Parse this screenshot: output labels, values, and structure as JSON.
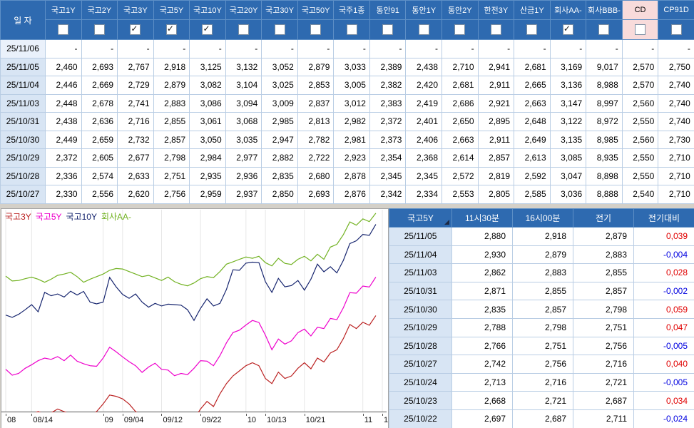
{
  "colors": {
    "window_bg": "#d4d0c8",
    "header_bg": "#2e6ab0",
    "header_text": "#ffffff",
    "date_cell_bg": "#d8e5f4",
    "cd_highlight_bg": "#f8dbdb",
    "change_up": "#e00000",
    "change_down": "#0000e0"
  },
  "top_table": {
    "date_header": "일  자",
    "columns": [
      {
        "label": "국고1Y",
        "checked": false,
        "highlight": false
      },
      {
        "label": "국고2Y",
        "checked": false,
        "highlight": false
      },
      {
        "label": "국고3Y",
        "checked": true,
        "highlight": false
      },
      {
        "label": "국고5Y",
        "checked": true,
        "highlight": false
      },
      {
        "label": "국고10Y",
        "checked": true,
        "highlight": false
      },
      {
        "label": "국고20Y",
        "checked": false,
        "highlight": false
      },
      {
        "label": "국고30Y",
        "checked": false,
        "highlight": false
      },
      {
        "label": "국고50Y",
        "checked": false,
        "highlight": false
      },
      {
        "label": "국주1종",
        "checked": false,
        "highlight": false
      },
      {
        "label": "통안91",
        "checked": false,
        "highlight": false
      },
      {
        "label": "통안1Y",
        "checked": false,
        "highlight": false
      },
      {
        "label": "통안2Y",
        "checked": false,
        "highlight": false
      },
      {
        "label": "한전3Y",
        "checked": false,
        "highlight": false
      },
      {
        "label": "산금1Y",
        "checked": false,
        "highlight": false
      },
      {
        "label": "회사AA-",
        "checked": true,
        "highlight": false
      },
      {
        "label": "회사BBB-",
        "checked": false,
        "highlight": false
      },
      {
        "label": "CD",
        "checked": false,
        "highlight": true
      },
      {
        "label": "CP91D",
        "checked": false,
        "highlight": false
      }
    ],
    "rows": [
      {
        "date": "25/11/06",
        "values": [
          "-",
          "-",
          "-",
          "-",
          "-",
          "-",
          "-",
          "-",
          "-",
          "-",
          "-",
          "-",
          "-",
          "-",
          "-",
          "-",
          "-",
          "-"
        ]
      },
      {
        "date": "25/11/05",
        "values": [
          "2,460",
          "2,693",
          "2,767",
          "2,918",
          "3,125",
          "3,132",
          "3,052",
          "2,879",
          "3,033",
          "2,389",
          "2,438",
          "2,710",
          "2,941",
          "2,681",
          "3,169",
          "9,017",
          "2,570",
          "2,750"
        ]
      },
      {
        "date": "25/11/04",
        "values": [
          "2,446",
          "2,669",
          "2,729",
          "2,879",
          "3,082",
          "3,104",
          "3,025",
          "2,853",
          "3,005",
          "2,382",
          "2,420",
          "2,681",
          "2,911",
          "2,665",
          "3,136",
          "8,988",
          "2,570",
          "2,740"
        ]
      },
      {
        "date": "25/11/03",
        "values": [
          "2,448",
          "2,678",
          "2,741",
          "2,883",
          "3,086",
          "3,094",
          "3,009",
          "2,837",
          "3,012",
          "2,383",
          "2,419",
          "2,686",
          "2,921",
          "2,663",
          "3,147",
          "8,997",
          "2,560",
          "2,740"
        ]
      },
      {
        "date": "25/10/31",
        "values": [
          "2,438",
          "2,636",
          "2,716",
          "2,855",
          "3,061",
          "3,068",
          "2,985",
          "2,813",
          "2,982",
          "2,372",
          "2,401",
          "2,650",
          "2,895",
          "2,648",
          "3,122",
          "8,972",
          "2,550",
          "2,740"
        ]
      },
      {
        "date": "25/10/30",
        "values": [
          "2,449",
          "2,659",
          "2,732",
          "2,857",
          "3,050",
          "3,035",
          "2,947",
          "2,782",
          "2,981",
          "2,373",
          "2,406",
          "2,663",
          "2,911",
          "2,649",
          "3,135",
          "8,985",
          "2,560",
          "2,730"
        ]
      },
      {
        "date": "25/10/29",
        "values": [
          "2,372",
          "2,605",
          "2,677",
          "2,798",
          "2,984",
          "2,977",
          "2,882",
          "2,722",
          "2,923",
          "2,354",
          "2,368",
          "2,614",
          "2,857",
          "2,613",
          "3,085",
          "8,935",
          "2,550",
          "2,710"
        ]
      },
      {
        "date": "25/10/28",
        "values": [
          "2,336",
          "2,574",
          "2,633",
          "2,751",
          "2,935",
          "2,936",
          "2,835",
          "2,680",
          "2,878",
          "2,345",
          "2,345",
          "2,572",
          "2,819",
          "2,592",
          "3,047",
          "8,898",
          "2,550",
          "2,710"
        ]
      },
      {
        "date": "25/10/27",
        "values": [
          "2,330",
          "2,556",
          "2,620",
          "2,756",
          "2,959",
          "2,937",
          "2,850",
          "2,693",
          "2,876",
          "2,342",
          "2,334",
          "2,553",
          "2,805",
          "2,585",
          "3,036",
          "8,888",
          "2,540",
          "2,710"
        ]
      }
    ]
  },
  "quote_table": {
    "title_column": "국고5Y",
    "headers": [
      "11시30분",
      "16시00분",
      "전기",
      "전기대비"
    ],
    "rows": [
      {
        "date": "25/11/05",
        "t1130": "2,880",
        "t1600": "2,918",
        "prev": "2,879",
        "change": "0,039",
        "sign": "up"
      },
      {
        "date": "25/11/04",
        "t1130": "2,930",
        "t1600": "2,879",
        "prev": "2,883",
        "change": "-0,004",
        "sign": "down"
      },
      {
        "date": "25/11/03",
        "t1130": "2,862",
        "t1600": "2,883",
        "prev": "2,855",
        "change": "0,028",
        "sign": "up"
      },
      {
        "date": "25/10/31",
        "t1130": "2,871",
        "t1600": "2,855",
        "prev": "2,857",
        "change": "-0,002",
        "sign": "down"
      },
      {
        "date": "25/10/30",
        "t1130": "2,835",
        "t1600": "2,857",
        "prev": "2,798",
        "change": "0,059",
        "sign": "up"
      },
      {
        "date": "25/10/29",
        "t1130": "2,788",
        "t1600": "2,798",
        "prev": "2,751",
        "change": "0,047",
        "sign": "up"
      },
      {
        "date": "25/10/28",
        "t1130": "2,766",
        "t1600": "2,751",
        "prev": "2,756",
        "change": "-0,005",
        "sign": "down"
      },
      {
        "date": "25/10/27",
        "t1130": "2,742",
        "t1600": "2,756",
        "prev": "2,716",
        "change": "0,040",
        "sign": "up"
      },
      {
        "date": "25/10/24",
        "t1130": "2,713",
        "t1600": "2,716",
        "prev": "2,721",
        "change": "-0,005",
        "sign": "down"
      },
      {
        "date": "25/10/23",
        "t1130": "2,668",
        "t1600": "2,721",
        "prev": "2,687",
        "change": "0,034",
        "sign": "up"
      },
      {
        "date": "25/10/22",
        "t1130": "2,697",
        "t1600": "2,687",
        "prev": "2,711",
        "change": "-0,024",
        "sign": "down"
      }
    ]
  },
  "chart_data": {
    "type": "line",
    "title": "",
    "xlabel": "",
    "ylabel": "",
    "ylim": [
      2.39,
      3.18
    ],
    "grid": "vertical",
    "legend_position": "top-left",
    "x_ticks": [
      {
        "label": "08",
        "index": 0
      },
      {
        "label": "08/14",
        "index": 4
      },
      {
        "label": "09",
        "index": 15
      },
      {
        "label": "09/04",
        "index": 18
      },
      {
        "label": "09/12",
        "index": 24
      },
      {
        "label": "09/22",
        "index": 30
      },
      {
        "label": "10",
        "index": 37
      },
      {
        "label": "10/13",
        "index": 40
      },
      {
        "label": "10/21",
        "index": 46
      },
      {
        "label": "11",
        "index": 55
      },
      {
        "label": "1",
        "index": 58
      }
    ],
    "series": [
      {
        "name": "국고3Y",
        "color": "#bb2222",
        "values": [
          2.36,
          2.35,
          2.36,
          2.37,
          2.38,
          2.39,
          2.38,
          2.385,
          2.4,
          2.39,
          2.38,
          2.37,
          2.36,
          2.37,
          2.39,
          2.42,
          2.455,
          2.45,
          2.44,
          2.42,
          2.39,
          2.37,
          2.38,
          2.37,
          2.35,
          2.34,
          2.33,
          2.34,
          2.33,
          2.36,
          2.4,
          2.43,
          2.41,
          2.46,
          2.5,
          2.53,
          2.55,
          2.57,
          2.582,
          2.57,
          2.52,
          2.5,
          2.545,
          2.52,
          2.53,
          2.56,
          2.582,
          2.558,
          2.6,
          2.585,
          2.62,
          2.633,
          2.677,
          2.732,
          2.716,
          2.741,
          2.729,
          2.767,
          null
        ]
      },
      {
        "name": "국고5Y",
        "color": "#ee00cc",
        "values": [
          2.556,
          2.533,
          2.54,
          2.56,
          2.574,
          2.59,
          2.6,
          2.595,
          2.606,
          2.59,
          2.612,
          2.588,
          2.578,
          2.57,
          2.568,
          2.6,
          2.643,
          2.625,
          2.605,
          2.586,
          2.57,
          2.544,
          2.565,
          2.58,
          2.556,
          2.553,
          2.531,
          2.54,
          2.535,
          2.56,
          2.59,
          2.588,
          2.57,
          2.61,
          2.66,
          2.7,
          2.71,
          2.73,
          2.748,
          2.74,
          2.69,
          2.633,
          2.675,
          2.655,
          2.668,
          2.7,
          2.714,
          2.687,
          2.721,
          2.716,
          2.756,
          2.751,
          2.798,
          2.857,
          2.855,
          2.883,
          2.879,
          2.918,
          null
        ]
      },
      {
        "name": "국고10Y",
        "color": "#15246e",
        "values": [
          2.769,
          2.76,
          2.772,
          2.79,
          2.81,
          2.782,
          2.858,
          2.845,
          2.852,
          2.84,
          2.863,
          2.848,
          2.862,
          2.82,
          2.813,
          2.82,
          2.917,
          2.88,
          2.85,
          2.835,
          2.852,
          2.82,
          2.8,
          2.815,
          2.805,
          2.812,
          2.81,
          2.808,
          2.79,
          2.748,
          2.795,
          2.833,
          2.805,
          2.815,
          2.87,
          2.947,
          2.945,
          2.973,
          2.977,
          2.975,
          2.9,
          2.858,
          2.913,
          2.88,
          2.885,
          2.905,
          2.867,
          2.91,
          2.969,
          2.939,
          2.959,
          2.935,
          2.984,
          3.05,
          3.061,
          3.086,
          3.082,
          3.125,
          null
        ]
      },
      {
        "name": "회사AA-",
        "color": "#72b222",
        "values": [
          2.922,
          2.903,
          2.905,
          2.912,
          2.918,
          2.91,
          2.898,
          2.91,
          2.925,
          2.93,
          2.937,
          2.92,
          2.898,
          2.91,
          2.92,
          2.93,
          2.945,
          2.952,
          2.95,
          2.94,
          2.93,
          2.92,
          2.925,
          2.915,
          2.905,
          2.918,
          2.9,
          2.89,
          2.884,
          2.895,
          2.912,
          2.92,
          2.916,
          2.94,
          2.969,
          2.978,
          2.988,
          2.997,
          2.992,
          3.0,
          2.975,
          2.962,
          2.992,
          2.972,
          2.968,
          2.988,
          3.0,
          2.982,
          3.008,
          2.988,
          3.036,
          3.047,
          3.085,
          3.135,
          3.122,
          3.147,
          3.136,
          3.169,
          null
        ]
      }
    ]
  }
}
